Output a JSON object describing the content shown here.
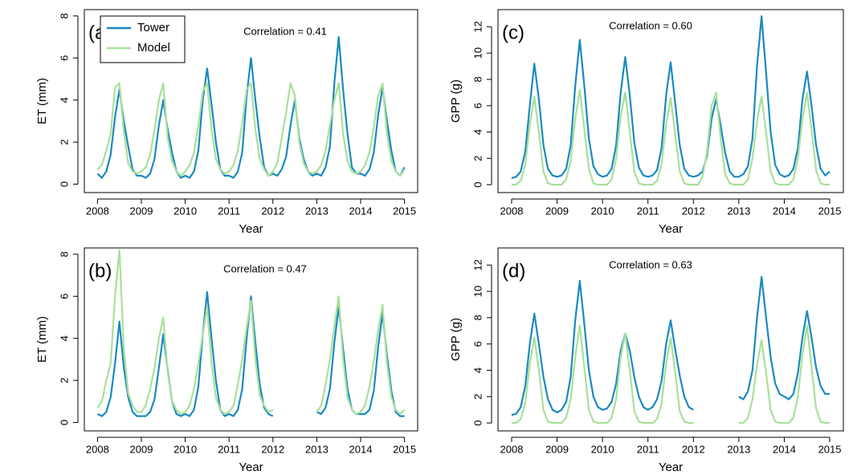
{
  "chart_data": [
    {
      "type": "line",
      "label": "(a)",
      "annotation": "Correlation = 0.41",
      "xlabel": "Year",
      "ylabel": "ET (mm)",
      "legend": "top-left",
      "xlim": [
        2007.7,
        2015.3
      ],
      "xticks": [
        2008,
        2009,
        2010,
        2011,
        2012,
        2013,
        2014,
        2015
      ],
      "ylim": [
        -0.4,
        8.3
      ],
      "yticks": [
        0,
        2,
        4,
        6,
        8
      ],
      "x": [
        2008,
        2008.1,
        2008.2,
        2008.3,
        2008.4,
        2008.5,
        2008.6,
        2008.7,
        2008.8,
        2008.9,
        2009,
        2009.1,
        2009.2,
        2009.3,
        2009.4,
        2009.5,
        2009.6,
        2009.7,
        2009.8,
        2009.9,
        2010,
        2010.1,
        2010.2,
        2010.3,
        2010.4,
        2010.5,
        2010.6,
        2010.7,
        2010.8,
        2010.9,
        2011,
        2011.1,
        2011.2,
        2011.3,
        2011.4,
        2011.5,
        2011.6,
        2011.7,
        2011.8,
        2011.9,
        2012,
        2012.1,
        2012.2,
        2012.3,
        2012.4,
        2012.5,
        2012.6,
        2012.7,
        2012.8,
        2012.9,
        2013,
        2013.1,
        2013.2,
        2013.3,
        2013.4,
        2013.5,
        2013.6,
        2013.7,
        2013.8,
        2013.9,
        2014,
        2014.1,
        2014.2,
        2014.3,
        2014.4,
        2014.5,
        2014.6,
        2014.7,
        2014.8,
        2014.9,
        2015
      ],
      "series": [
        {
          "name": "Tower",
          "color": "#1a8ac0",
          "values": [
            0.5,
            0.3,
            0.6,
            1.4,
            3.2,
            4.5,
            3.0,
            1.8,
            0.7,
            0.4,
            0.4,
            0.3,
            0.5,
            1.2,
            2.8,
            4.0,
            2.6,
            1.5,
            0.6,
            0.3,
            0.4,
            0.3,
            0.6,
            1.6,
            4.0,
            5.5,
            3.8,
            2.0,
            0.7,
            0.4,
            0.4,
            0.3,
            0.6,
            1.5,
            4.2,
            6.0,
            4.0,
            2.2,
            0.8,
            0.4,
            0.5,
            0.4,
            0.7,
            1.3,
            2.8,
            4.0,
            2.2,
            1.2,
            0.6,
            0.4,
            0.5,
            0.4,
            0.8,
            1.8,
            4.8,
            7.0,
            4.5,
            2.4,
            0.8,
            0.5,
            0.5,
            0.4,
            0.7,
            1.5,
            3.3,
            4.6,
            3.0,
            1.6,
            0.6,
            0.4,
            0.8
          ]
        },
        {
          "name": "Model",
          "color": "#a8e09a",
          "values": [
            0.7,
            0.9,
            1.6,
            2.4,
            4.6,
            4.8,
            2.5,
            1.0,
            0.6,
            0.5,
            0.6,
            0.8,
            1.4,
            2.6,
            4.0,
            4.8,
            2.2,
            1.1,
            0.6,
            0.4,
            0.6,
            0.9,
            1.5,
            2.8,
            4.4,
            4.8,
            2.6,
            1.2,
            0.7,
            0.5,
            0.6,
            0.9,
            1.6,
            2.9,
            4.5,
            4.8,
            2.6,
            1.2,
            0.7,
            0.4,
            0.6,
            1.0,
            2.2,
            3.4,
            4.8,
            4.2,
            2.0,
            1.0,
            0.6,
            0.5,
            0.6,
            0.9,
            1.6,
            2.8,
            4.0,
            4.8,
            2.4,
            1.1,
            0.6,
            0.5,
            0.6,
            0.9,
            1.5,
            2.7,
            4.2,
            4.8,
            2.4,
            1.1,
            0.6,
            0.4,
            0.7
          ]
        }
      ]
    },
    {
      "type": "line",
      "label": "(b)",
      "annotation": "Correlation = 0.47",
      "xlabel": "Year",
      "ylabel": "ET (mm)",
      "xlim": [
        2007.7,
        2015.3
      ],
      "xticks": [
        2008,
        2009,
        2010,
        2011,
        2012,
        2013,
        2014,
        2015
      ],
      "ylim": [
        -0.4,
        8.3
      ],
      "yticks": [
        0,
        2,
        4,
        6,
        8
      ],
      "x": [
        2008,
        2008.1,
        2008.2,
        2008.3,
        2008.4,
        2008.5,
        2008.6,
        2008.7,
        2008.8,
        2008.9,
        2009,
        2009.1,
        2009.2,
        2009.3,
        2009.4,
        2009.5,
        2009.6,
        2009.7,
        2009.8,
        2009.9,
        2010,
        2010.1,
        2010.2,
        2010.3,
        2010.4,
        2010.5,
        2010.6,
        2010.7,
        2010.8,
        2010.9,
        2011,
        2011.1,
        2011.2,
        2011.3,
        2011.4,
        2011.5,
        2011.6,
        2011.7,
        2011.8,
        2011.9,
        2012,
        2012.1,
        2012.2,
        2012.3,
        2012.4,
        2012.5,
        2012.6,
        2012.7,
        2012.8,
        2012.9,
        2013,
        2013.1,
        2013.2,
        2013.3,
        2013.4,
        2013.5,
        2013.6,
        2013.7,
        2013.8,
        2013.9,
        2014,
        2014.1,
        2014.2,
        2014.3,
        2014.4,
        2014.5,
        2014.6,
        2014.7,
        2014.8,
        2014.9,
        2015
      ],
      "series": [
        {
          "color": "#1a8ac0",
          "values": [
            0.4,
            0.3,
            0.5,
            1.2,
            2.8,
            4.8,
            2.6,
            1.2,
            0.5,
            0.3,
            0.3,
            0.3,
            0.5,
            1.1,
            2.6,
            4.2,
            2.5,
            1.0,
            0.4,
            0.3,
            0.4,
            0.3,
            0.6,
            1.7,
            4.2,
            6.2,
            4.0,
            2.0,
            0.6,
            0.3,
            0.4,
            0.3,
            0.6,
            1.6,
            4.0,
            6.0,
            3.8,
            1.8,
            0.7,
            0.4,
            0.3,
            null,
            null,
            null,
            null,
            null,
            null,
            null,
            null,
            null,
            0.5,
            0.4,
            0.7,
            1.6,
            3.8,
            5.5,
            3.5,
            1.6,
            0.6,
            0.4,
            0.4,
            0.4,
            0.6,
            1.5,
            3.6,
            5.2,
            3.2,
            1.5,
            0.5,
            0.3,
            0.3
          ]
        },
        {
          "color": "#a8e09a",
          "values": [
            0.7,
            1.0,
            2.0,
            2.8,
            6.0,
            8.2,
            3.5,
            1.4,
            0.8,
            0.5,
            0.5,
            0.8,
            1.6,
            2.6,
            4.0,
            5.0,
            2.4,
            1.0,
            0.6,
            0.4,
            0.5,
            0.8,
            1.6,
            2.8,
            4.2,
            5.5,
            2.8,
            1.2,
            0.6,
            0.4,
            0.5,
            0.8,
            1.8,
            3.0,
            4.5,
            5.8,
            3.0,
            1.3,
            0.8,
            0.5,
            0.6,
            null,
            null,
            null,
            null,
            null,
            null,
            null,
            null,
            null,
            0.5,
            0.8,
            1.8,
            3.0,
            4.6,
            6.0,
            3.0,
            1.2,
            0.6,
            0.4,
            0.5,
            0.8,
            1.7,
            2.9,
            4.4,
            5.6,
            2.8,
            1.2,
            0.6,
            0.4,
            0.6
          ]
        }
      ]
    },
    {
      "type": "line",
      "label": "(c)",
      "annotation": "Correlation = 0.60",
      "xlabel": "Year",
      "ylabel": "GPP (g)",
      "xlim": [
        2007.7,
        2015.3
      ],
      "xticks": [
        2008,
        2009,
        2010,
        2011,
        2012,
        2013,
        2014,
        2015
      ],
      "ylim": [
        -0.6,
        13.3
      ],
      "yticks": [
        0,
        2,
        4,
        6,
        8,
        10,
        12
      ],
      "x": [
        2008,
        2008.1,
        2008.2,
        2008.3,
        2008.4,
        2008.5,
        2008.6,
        2008.7,
        2008.8,
        2008.9,
        2009,
        2009.1,
        2009.2,
        2009.3,
        2009.4,
        2009.5,
        2009.6,
        2009.7,
        2009.8,
        2009.9,
        2010,
        2010.1,
        2010.2,
        2010.3,
        2010.4,
        2010.5,
        2010.6,
        2010.7,
        2010.8,
        2010.9,
        2011,
        2011.1,
        2011.2,
        2011.3,
        2011.4,
        2011.5,
        2011.6,
        2011.7,
        2011.8,
        2011.9,
        2012,
        2012.1,
        2012.2,
        2012.3,
        2012.4,
        2012.5,
        2012.6,
        2012.7,
        2012.8,
        2012.9,
        2013,
        2013.1,
        2013.2,
        2013.3,
        2013.4,
        2013.5,
        2013.6,
        2013.7,
        2013.8,
        2013.9,
        2014,
        2014.1,
        2014.2,
        2014.3,
        2014.4,
        2014.5,
        2014.6,
        2014.7,
        2014.8,
        2014.9,
        2015
      ],
      "series": [
        {
          "color": "#1a8ac0",
          "values": [
            0.5,
            0.6,
            1.0,
            2.5,
            6.0,
            9.2,
            6.5,
            3.0,
            1.2,
            0.7,
            0.6,
            0.7,
            1.2,
            3.0,
            7.5,
            11.0,
            7.5,
            3.5,
            1.4,
            0.8,
            0.6,
            0.7,
            1.2,
            3.0,
            7.0,
            9.7,
            6.8,
            3.2,
            1.3,
            0.7,
            0.6,
            0.7,
            1.1,
            2.8,
            6.8,
            9.3,
            6.2,
            3.0,
            1.2,
            0.7,
            0.6,
            0.7,
            1.0,
            2.2,
            5.0,
            6.5,
            4.5,
            2.4,
            1.0,
            0.6,
            0.6,
            0.8,
            1.4,
            3.5,
            9.0,
            12.8,
            8.5,
            4.0,
            1.5,
            0.8,
            0.6,
            0.7,
            1.2,
            2.8,
            6.5,
            8.6,
            6.0,
            3.0,
            1.2,
            0.7,
            1.0
          ]
        },
        {
          "color": "#a8e09a",
          "values": [
            0,
            0,
            0.3,
            1.5,
            4.5,
            6.7,
            4.0,
            1.0,
            0.1,
            0,
            0,
            0,
            0.4,
            1.8,
            5.0,
            7.2,
            4.2,
            1.2,
            0.1,
            0,
            0,
            0,
            0.4,
            2.0,
            5.2,
            7.0,
            4.0,
            1.0,
            0.1,
            0,
            0,
            0,
            0.3,
            1.6,
            4.6,
            6.6,
            3.8,
            1.0,
            0.1,
            0,
            0,
            0,
            0.6,
            2.5,
            6.0,
            7.0,
            3.5,
            0.8,
            0.1,
            0,
            0,
            0,
            0.4,
            2.0,
            4.8,
            6.7,
            4.0,
            1.0,
            0.1,
            0,
            0,
            0,
            0.4,
            2.0,
            5.0,
            7.0,
            4.2,
            1.1,
            0.1,
            0,
            0
          ]
        }
      ]
    },
    {
      "type": "line",
      "label": "(d)",
      "annotation": "Correlation = 0.63",
      "xlabel": "Year",
      "ylabel": "GPP (g)",
      "xlim": [
        2007.7,
        2015.3
      ],
      "xticks": [
        2008,
        2009,
        2010,
        2011,
        2012,
        2013,
        2014,
        2015
      ],
      "ylim": [
        -0.6,
        13.3
      ],
      "yticks": [
        0,
        2,
        4,
        6,
        8,
        10,
        12
      ],
      "x": [
        2008,
        2008.1,
        2008.2,
        2008.3,
        2008.4,
        2008.5,
        2008.6,
        2008.7,
        2008.8,
        2008.9,
        2009,
        2009.1,
        2009.2,
        2009.3,
        2009.4,
        2009.5,
        2009.6,
        2009.7,
        2009.8,
        2009.9,
        2010,
        2010.1,
        2010.2,
        2010.3,
        2010.4,
        2010.5,
        2010.6,
        2010.7,
        2010.8,
        2010.9,
        2011,
        2011.1,
        2011.2,
        2011.3,
        2011.4,
        2011.5,
        2011.6,
        2011.7,
        2011.8,
        2011.9,
        2012,
        2012.1,
        2012.2,
        2012.3,
        2012.4,
        2012.5,
        2012.6,
        2012.7,
        2012.8,
        2012.9,
        2013,
        2013.1,
        2013.2,
        2013.3,
        2013.4,
        2013.5,
        2013.6,
        2013.7,
        2013.8,
        2013.9,
        2014,
        2014.1,
        2014.2,
        2014.3,
        2014.4,
        2014.5,
        2014.6,
        2014.7,
        2014.8,
        2014.9,
        2015
      ],
      "series": [
        {
          "color": "#1a8ac0",
          "values": [
            0.6,
            0.7,
            1.2,
            2.8,
            6.0,
            8.3,
            6.0,
            3.5,
            1.8,
            1.0,
            0.8,
            1.0,
            1.6,
            3.5,
            7.8,
            10.8,
            7.5,
            4.0,
            2.0,
            1.2,
            1.0,
            1.1,
            1.6,
            3.0,
            5.5,
            6.8,
            5.5,
            3.5,
            2.0,
            1.2,
            1.0,
            1.2,
            1.8,
            3.2,
            6.0,
            7.8,
            5.6,
            3.6,
            2.0,
            1.2,
            1.0,
            null,
            null,
            null,
            null,
            null,
            null,
            null,
            null,
            null,
            2.0,
            1.8,
            2.4,
            4.0,
            8.0,
            11.1,
            8.0,
            5.0,
            3.0,
            2.2,
            2.0,
            1.8,
            2.2,
            3.8,
            6.5,
            8.5,
            6.5,
            4.2,
            2.8,
            2.2,
            2.2
          ]
        },
        {
          "color": "#a8e09a",
          "values": [
            0,
            0,
            0.3,
            1.5,
            4.5,
            6.5,
            4.0,
            1.0,
            0.1,
            0,
            0,
            0,
            0.4,
            1.8,
            5.0,
            7.4,
            4.2,
            1.0,
            0.1,
            0,
            0,
            0,
            0.4,
            1.8,
            5.0,
            6.8,
            4.0,
            0.9,
            0.1,
            0,
            0,
            0,
            0.3,
            1.5,
            4.5,
            6.5,
            3.8,
            0.9,
            0.1,
            0,
            0,
            null,
            null,
            null,
            null,
            null,
            null,
            null,
            null,
            null,
            0,
            0,
            0.4,
            1.8,
            4.4,
            6.3,
            3.8,
            1.0,
            0.1,
            0,
            0,
            0,
            0.4,
            2.0,
            5.2,
            7.4,
            4.2,
            1.1,
            0.1,
            0,
            0
          ]
        }
      ]
    }
  ]
}
